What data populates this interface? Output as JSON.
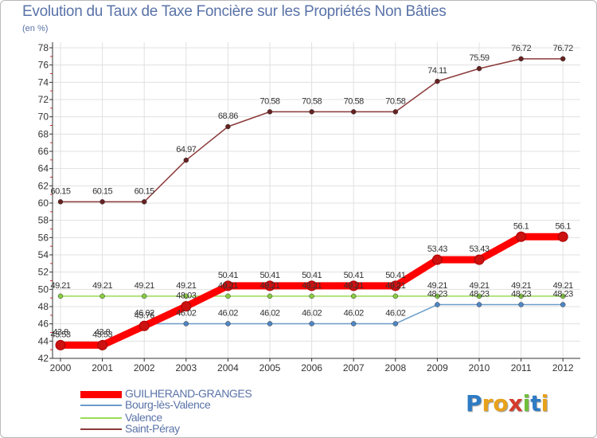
{
  "colors": {
    "title": "#5a73a8",
    "axis": "#333333",
    "grid": "#e0e0e0",
    "tick_minor": "#d33333"
  },
  "chart_data": {
    "type": "line",
    "title": "Evolution du Taux de Taxe Foncière sur les Propriétés Non Bâties",
    "ylabel": "(en %)",
    "xlabel": "",
    "ylim": [
      42,
      78
    ],
    "ytick_step": 2,
    "grid": true,
    "categories": [
      "2000",
      "2001",
      "2002",
      "2003",
      "2004",
      "2005",
      "2006",
      "2007",
      "2008",
      "2009",
      "2010",
      "2011",
      "2012"
    ],
    "series": [
      {
        "name": "GUILHERAND-GRANGES",
        "color": "#ff0000",
        "values": [
          43.53,
          43.53,
          45.76,
          48.03,
          50.41,
          50.41,
          50.41,
          50.41,
          50.41,
          53.43,
          53.43,
          56.1,
          56.1
        ],
        "labels": [
          "43.53",
          "43.53",
          "45.76",
          "48.03",
          "50.41",
          "50.41",
          "50.41",
          "50.41",
          "50.41",
          "53.43",
          "53.43",
          "56.1",
          "56.1"
        ]
      },
      {
        "name": "Bourg-lès-Valence",
        "color": "#6b9bc9",
        "values": [
          43.8,
          43.8,
          46.02,
          46.02,
          46.02,
          46.02,
          46.02,
          46.02,
          46.02,
          48.23,
          48.23,
          48.23,
          48.23
        ],
        "labels": [
          "43.8",
          "43.8",
          "46.02",
          "46.02",
          "46.02",
          "46.02",
          "46.02",
          "46.02",
          "46.02",
          "48.23",
          "48.23",
          "48.23",
          "48.23"
        ]
      },
      {
        "name": "Valence",
        "color": "#99dd55",
        "values": [
          49.21,
          49.21,
          49.21,
          49.21,
          49.21,
          49.21,
          49.21,
          49.21,
          49.21,
          49.21,
          49.21,
          49.21,
          49.21
        ],
        "labels": [
          "49.21",
          "49.21",
          "49.21",
          "49.21",
          "49.21",
          "49.21",
          "49.21",
          "49.21",
          "49.21",
          "49.21",
          "49.21",
          "49.21",
          "49.21"
        ]
      },
      {
        "name": "Saint-Péray",
        "color": "#8b3a3a",
        "values": [
          60.15,
          60.15,
          60.15,
          64.97,
          68.86,
          70.58,
          70.58,
          70.58,
          70.58,
          74.11,
          75.59,
          76.72,
          76.72
        ],
        "labels": [
          "60.15",
          "60.15",
          "60.15",
          "64.97",
          "68.86",
          "70.58",
          "70.58",
          "70.58",
          "70.58",
          "74.11",
          "75.59",
          "76.72",
          "76.72"
        ]
      }
    ]
  },
  "branding": {
    "logo_text": "Proxiti"
  }
}
